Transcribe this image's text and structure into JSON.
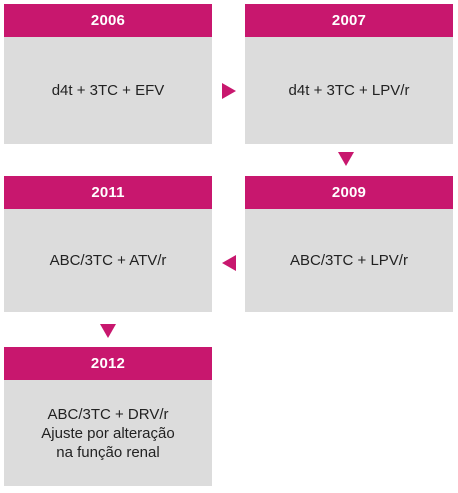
{
  "steps": [
    {
      "year": "2006",
      "lines": [
        "d4t + 3TC + EFV"
      ]
    },
    {
      "year": "2007",
      "lines": [
        "d4t + 3TC + LPV/r"
      ]
    },
    {
      "year": "2009",
      "lines": [
        "ABC/3TC + LPV/r"
      ]
    },
    {
      "year": "2011",
      "lines": [
        "ABC/3TC + ATV/r"
      ]
    },
    {
      "year": "2012",
      "lines": [
        "ABC/3TC + DRV/r",
        "Ajuste por alteração",
        "na função renal"
      ]
    }
  ],
  "colors": {
    "header": "#c8176e",
    "body": "#dcdcdc",
    "arrow": "#c8176e"
  }
}
